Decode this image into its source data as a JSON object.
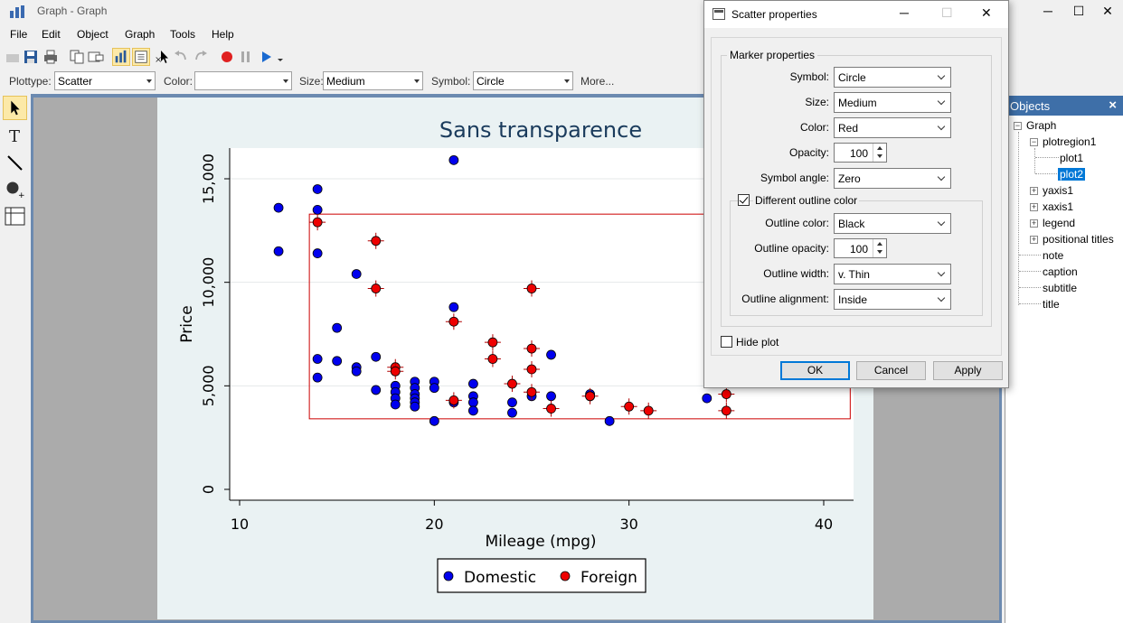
{
  "window": {
    "title": "Graph - Graph",
    "minimize": "─",
    "maximize": "☐",
    "close": "✕"
  },
  "menu": [
    "File",
    "Edit",
    "Object",
    "Graph",
    "Tools",
    "Help"
  ],
  "propbar": {
    "plottype_label": "Plottype:",
    "plottype_value": "Scatter",
    "color_label": "Color:",
    "color_value": "",
    "size_label": "Size:",
    "size_value": "Medium",
    "symbol_label": "Symbol:",
    "symbol_value": "Circle",
    "more": "More..."
  },
  "objects_panel": {
    "title": "Objects",
    "items": [
      "Graph",
      "plotregion1",
      "plot1",
      "plot2",
      "yaxis1",
      "xaxis1",
      "legend",
      "positional titles",
      "note",
      "caption",
      "subtitle",
      "title"
    ],
    "selected": "plot2"
  },
  "dialog": {
    "title": "Scatter properties",
    "group_label": "Marker properties",
    "symbol_label": "Symbol:",
    "symbol_value": "Circle",
    "size_label": "Size:",
    "size_value": "Medium",
    "color_label": "Color:",
    "color_value": "Red",
    "opacity_label": "Opacity:",
    "opacity_value": "100",
    "angle_label": "Symbol angle:",
    "angle_value": "Zero",
    "outline_check_label": "Different outline color",
    "outline_checked": true,
    "outline_color_label": "Outline color:",
    "outline_color_value": "Black",
    "outline_opacity_label": "Outline opacity:",
    "outline_opacity_value": "100",
    "outline_width_label": "Outline width:",
    "outline_width_value": "v. Thin",
    "outline_align_label": "Outline alignment:",
    "outline_align_value": "Inside",
    "hide_plot_label": "Hide plot",
    "hide_plot_checked": false,
    "ok": "OK",
    "cancel": "Cancel",
    "apply": "Apply"
  },
  "colors": {
    "accent": "#0078d7",
    "domestic": "#0000ee",
    "foreign": "#ee0000",
    "canvas_bg": "#eaf2f3",
    "title": "#1a3b5c"
  },
  "chart_data": {
    "type": "scatter",
    "title": "Sans transparence",
    "xlabel": "Mileage (mpg)",
    "ylabel": "Price",
    "xlim": [
      10,
      40
    ],
    "ylim": [
      0,
      15000
    ],
    "xticks": [
      "10",
      "20",
      "30",
      "40"
    ],
    "yticks": [
      "0",
      "5,000",
      "10,000",
      "15,000"
    ],
    "grid": true,
    "legend_position": "bottom",
    "series": [
      {
        "name": "Domestic",
        "color": "#0000ee",
        "points": [
          [
            12,
            13600
          ],
          [
            12,
            11500
          ],
          [
            14,
            14500
          ],
          [
            14,
            13500
          ],
          [
            14,
            11400
          ],
          [
            14,
            6300
          ],
          [
            14,
            5400
          ],
          [
            15,
            7800
          ],
          [
            15,
            6200
          ],
          [
            16,
            10400
          ],
          [
            16,
            5900
          ],
          [
            16,
            5700
          ],
          [
            17,
            6400
          ],
          [
            17,
            4800
          ],
          [
            18,
            5000
          ],
          [
            18,
            4700
          ],
          [
            18,
            4400
          ],
          [
            18,
            4100
          ],
          [
            19,
            5200
          ],
          [
            19,
            4900
          ],
          [
            19,
            4600
          ],
          [
            19,
            4400
          ],
          [
            19,
            4200
          ],
          [
            19,
            4000
          ],
          [
            20,
            5200
          ],
          [
            20,
            4900
          ],
          [
            20,
            3300
          ],
          [
            21,
            15900
          ],
          [
            21,
            8800
          ],
          [
            21,
            4200
          ],
          [
            22,
            5100
          ],
          [
            22,
            4500
          ],
          [
            22,
            4200
          ],
          [
            22,
            3800
          ],
          [
            24,
            4200
          ],
          [
            24,
            3700
          ],
          [
            25,
            4500
          ],
          [
            26,
            6500
          ],
          [
            26,
            4500
          ],
          [
            28,
            4600
          ],
          [
            28,
            4500
          ],
          [
            29,
            3300
          ],
          [
            34,
            4400
          ]
        ]
      },
      {
        "name": "Foreign",
        "color": "#ee0000",
        "points": [
          [
            14,
            12900
          ],
          [
            17,
            12000
          ],
          [
            17,
            9700
          ],
          [
            18,
            5900
          ],
          [
            18,
            5700
          ],
          [
            21,
            8100
          ],
          [
            21,
            4300
          ],
          [
            23,
            7100
          ],
          [
            23,
            6300
          ],
          [
            24,
            5100
          ],
          [
            25,
            9700
          ],
          [
            25,
            6800
          ],
          [
            25,
            5800
          ],
          [
            25,
            4700
          ],
          [
            26,
            3900
          ],
          [
            28,
            4500
          ],
          [
            30,
            4000
          ],
          [
            31,
            3800
          ],
          [
            35,
            4600
          ],
          [
            35,
            3800
          ]
        ]
      }
    ]
  }
}
